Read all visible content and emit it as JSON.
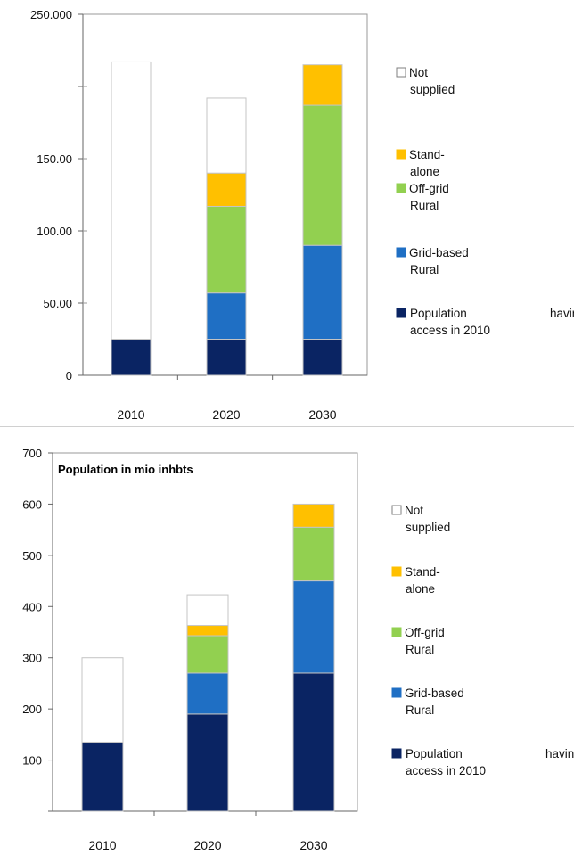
{
  "chart_data": [
    {
      "type": "bar",
      "stacked": true,
      "categories": [
        "2010",
        "2020",
        "2030"
      ],
      "y_tick_labels": [
        "0",
        "50.00",
        "100.00",
        "150.00",
        "",
        "250.000"
      ],
      "ylim": [
        0,
        250
      ],
      "grid": false,
      "legend_position": "right",
      "series": [
        {
          "name": "Population having access in 2010",
          "legend_lines": [
            "Population",
            "having",
            "access in 2010"
          ],
          "color": "#0a2463",
          "values": [
            25,
            25,
            25
          ]
        },
        {
          "name": "Grid-based Rural",
          "legend_lines": [
            "Grid-based",
            "Rural"
          ],
          "color": "#1f6fc4",
          "values": [
            0,
            32,
            65
          ]
        },
        {
          "name": "Off-grid Rural",
          "legend_lines": [
            "Off-grid",
            "Rural"
          ],
          "color": "#92d050",
          "values": [
            0,
            60,
            97
          ]
        },
        {
          "name": "Stand-alone",
          "legend_lines": [
            "Stand-",
            "alone"
          ],
          "color": "#ffc000",
          "values": [
            0,
            23,
            28
          ]
        },
        {
          "name": "Not supplied",
          "legend_lines": [
            "Not",
            "supplied"
          ],
          "color": "#ffffff",
          "values": [
            192,
            52,
            0
          ]
        }
      ]
    },
    {
      "type": "bar",
      "stacked": true,
      "title": "Population in mio inhbts",
      "categories": [
        "2010",
        "2020",
        "2030"
      ],
      "y_tick_labels": [
        "",
        "100",
        "200",
        "300",
        "400",
        "500",
        "600",
        "700"
      ],
      "ylim": [
        0,
        700
      ],
      "grid": false,
      "legend_position": "right",
      "series": [
        {
          "name": "Population having access in 2010",
          "legend_lines": [
            "Population",
            "having",
            "access in 2010"
          ],
          "color": "#0a2463",
          "values": [
            135,
            190,
            270
          ]
        },
        {
          "name": "Grid-based Rural",
          "legend_lines": [
            "Grid-based",
            "Rural"
          ],
          "color": "#1f6fc4",
          "values": [
            0,
            80,
            180
          ]
        },
        {
          "name": "Off-grid Rural",
          "legend_lines": [
            "Off-grid",
            "Rural"
          ],
          "color": "#92d050",
          "values": [
            0,
            73,
            105
          ]
        },
        {
          "name": "Stand-alone",
          "legend_lines": [
            "Stand-",
            "alone"
          ],
          "color": "#ffc000",
          "values": [
            0,
            20,
            45
          ]
        },
        {
          "name": "Not supplied",
          "legend_lines": [
            "Not",
            "supplied"
          ],
          "color": "#ffffff",
          "values": [
            165,
            60,
            0
          ]
        }
      ]
    }
  ]
}
